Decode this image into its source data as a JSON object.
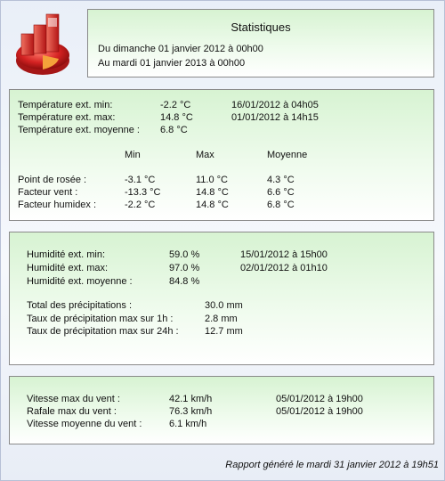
{
  "header": {
    "title": "Statistiques",
    "period_from": "Du dimanche 01 janvier 2012 à 00h00",
    "period_to": "Au mardi 01 janvier 2013 à 00h00"
  },
  "temperature": {
    "min_label": "Température ext. min:",
    "min_value": "-2.2 °C",
    "min_date": "16/01/2012 à 04h05",
    "max_label": "Température ext. max:",
    "max_value": "14.8 °C",
    "max_date": "01/01/2012 à 14h15",
    "avg_label": "Température ext. moyenne :",
    "avg_value": "6.8 °C",
    "col_min": "Min",
    "col_max": "Max",
    "col_avg": "Moyenne",
    "rows": [
      {
        "label": "Point de rosée :",
        "min": "-3.1 °C",
        "max": "11.0 °C",
        "avg": "4.3 °C"
      },
      {
        "label": "Facteur vent :",
        "min": "-13.3 °C",
        "max": "14.8 °C",
        "avg": "6.6 °C"
      },
      {
        "label": "Facteur humidex :",
        "min": "-2.2 °C",
        "max": "14.8 °C",
        "avg": "6.8 °C"
      }
    ]
  },
  "humidity": {
    "min_label": "Humidité ext. min:",
    "min_value": "59.0 %",
    "min_date": "15/01/2012 à 15h00",
    "max_label": "Humidité ext. max:",
    "max_value": "97.0 %",
    "max_date": "02/01/2012 à 01h10",
    "avg_label": "Humidité ext. moyenne :",
    "avg_value": "84.8 %"
  },
  "rain": {
    "total_label": "Total des précipitations :",
    "total_value": "30.0 mm",
    "rate1h_label": "Taux de précipitation max sur 1h :",
    "rate1h_value": "2.8 mm",
    "rate24h_label": "Taux de précipitation max sur 24h :",
    "rate24h_value": "12.7 mm"
  },
  "wind": {
    "max_label": "Vitesse max du vent :",
    "max_value": "42.1 km/h",
    "max_date": "05/01/2012 à 19h00",
    "gust_label": "Rafale max du vent :",
    "gust_value": "76.3 km/h",
    "gust_date": "05/01/2012 à 19h00",
    "avg_label": "Vitesse moyenne du vent :",
    "avg_value": "6.1 km/h"
  },
  "footer": "Rapport généré le mardi 31 janvier 2012 à 19h51",
  "colors": {
    "panel_top": "#d7f3d2",
    "panel_border": "#8a8a8a",
    "logo_red": "#d42222"
  },
  "icons": {
    "logo": "statistics-chart-icon"
  }
}
